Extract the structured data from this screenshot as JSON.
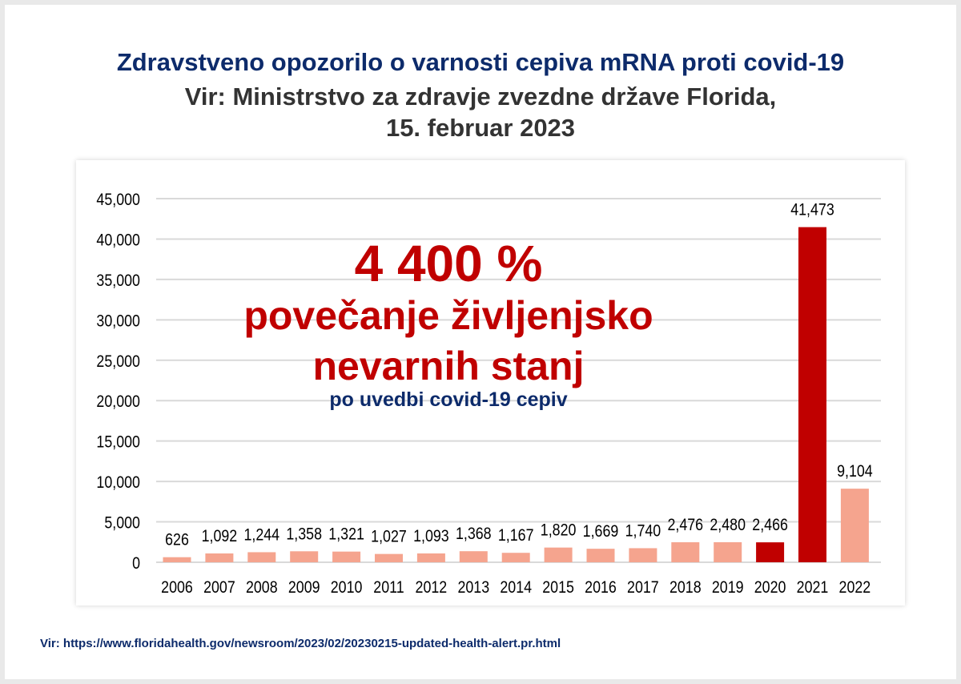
{
  "title": "Zdravstveno opozorilo o varnosti cepiva mRNA proti covid-19",
  "subtitle_line1": "Vir: Ministrstvo za zdravje zvezdne države Florida,",
  "subtitle_line2": "15. februar 2023",
  "overlay": {
    "percent": "4 400 %",
    "line1": "povečanje življenjsko",
    "line2": "nevarnih stanj",
    "line3": "po uvedbi covid-19 cepiv"
  },
  "source": "Vir: https://www.floridahealth.gov/newsroom/2023/02/20230215-updated-health-alert.pr.html",
  "chart_data": {
    "type": "bar",
    "title": "",
    "xlabel": "",
    "ylabel": "",
    "ylim": [
      0,
      45000
    ],
    "yticks": [
      "0",
      "5,000",
      "10,000",
      "15,000",
      "20,000",
      "25,000",
      "30,000",
      "35,000",
      "40,000",
      "45,000"
    ],
    "grid": true,
    "categories": [
      "2006",
      "2007",
      "2008",
      "2009",
      "2010",
      "2011",
      "2012",
      "2013",
      "2014",
      "2015",
      "2016",
      "2017",
      "2018",
      "2019",
      "2020",
      "2021",
      "2022"
    ],
    "values": [
      626,
      1092,
      1244,
      1358,
      1321,
      1027,
      1093,
      1368,
      1167,
      1820,
      1669,
      1740,
      2476,
      2480,
      2466,
      41473,
      9104
    ],
    "labels": [
      "626",
      "1,092",
      "1,244",
      "1,358",
      "1,321",
      "1,027",
      "1,093",
      "1,368",
      "1,167",
      "1,820",
      "1,669",
      "1,740",
      "2,476",
      "2,480",
      "2,466",
      "41,473",
      "9,104"
    ],
    "highlight": [
      "normal",
      "normal",
      "normal",
      "normal",
      "normal",
      "normal",
      "normal",
      "normal",
      "normal",
      "normal",
      "normal",
      "normal",
      "normal",
      "normal",
      "dark",
      "dark",
      "normal"
    ],
    "colors": {
      "normal": "#f5a48e",
      "dark": "#c00000"
    }
  }
}
